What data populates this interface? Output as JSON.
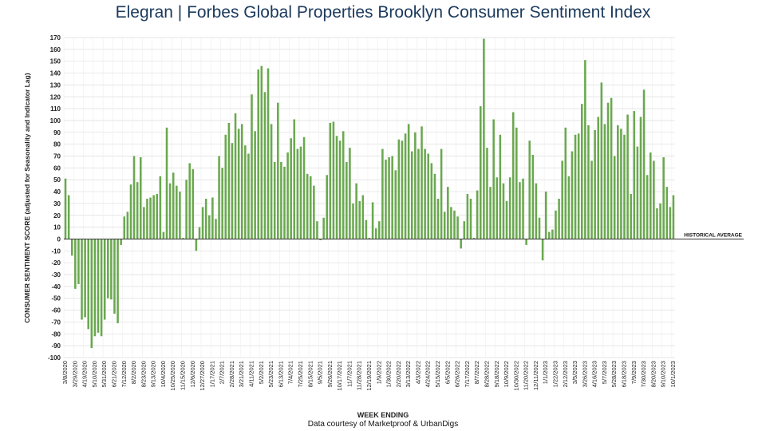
{
  "title": {
    "brand": "Elegran | Forbes Global Properties",
    "subtitle": "Brooklyn Consumer Sentiment Index"
  },
  "footer": {
    "credit": "Data courtesy of Marketproof & UrbanDigs"
  },
  "chart_data": {
    "type": "bar",
    "ylabel": "CONSUMER SENTIMENT SCORE (adjusted for Seasonality and Indicator Lag)",
    "xlabel": "WEEK ENDING",
    "ylim": [
      -100,
      170
    ],
    "yticks": [
      170,
      160,
      150,
      140,
      130,
      120,
      110,
      100,
      90,
      80,
      70,
      60,
      50,
      40,
      30,
      20,
      10,
      0,
      -10,
      -20,
      -30,
      -40,
      -50,
      -60,
      -70,
      -80,
      -90,
      -100
    ],
    "reference_line": {
      "value": 0,
      "label": "HISTORICAL AVERAGE"
    },
    "bar_color": "#6aa84f",
    "grid": true,
    "x_tick_labels": [
      "3/8/2020",
      "3/29/2020",
      "4/19/2020",
      "5/10/2020",
      "5/31/2020",
      "6/21/2020",
      "7/12/2020",
      "8/2/2020",
      "8/23/2020",
      "9/13/2020",
      "10/4/2020",
      "10/25/2020",
      "11/15/2020",
      "12/6/2020",
      "12/27/2020",
      "1/17/2021",
      "2/7/2021",
      "2/28/2021",
      "3/21/2021",
      "4/11/2021",
      "5/2/2021",
      "5/23/2021",
      "6/13/2021",
      "7/4/2021",
      "7/25/2021",
      "8/15/2021",
      "9/5/2021",
      "9/26/2021",
      "10/17/2021",
      "11/7/2021",
      "11/28/2021",
      "12/19/2021",
      "1/9/2022",
      "1/30/2022",
      "2/20/2022",
      "3/13/2022",
      "4/3/2022",
      "4/24/2022",
      "5/15/2022",
      "6/5/2022",
      "6/26/2022",
      "7/17/2022",
      "8/7/2022",
      "8/28/2022",
      "9/18/2022",
      "10/9/2022",
      "10/30/2022",
      "11/20/2022",
      "12/11/2022",
      "1/1/2023",
      "1/22/2023",
      "2/12/2023",
      "3/5/2023",
      "3/26/2023",
      "4/16/2023",
      "5/7/2023",
      "5/28/2023",
      "6/18/2023",
      "7/9/2023",
      "7/30/2023",
      "8/20/2023",
      "9/10/2023",
      "10/1/2023"
    ],
    "values": [
      51,
      37,
      -14,
      -42,
      -38,
      -68,
      -66,
      -76,
      -92,
      -82,
      -79,
      -82,
      -68,
      -50,
      -51,
      -63,
      -71,
      -5,
      19,
      23,
      46,
      70,
      48,
      69,
      27,
      34,
      35,
      37,
      38,
      53,
      6,
      94,
      47,
      56,
      45,
      40,
      1,
      50,
      64,
      59,
      -10,
      10,
      27,
      34,
      20,
      35,
      17,
      70,
      60,
      88,
      98,
      81,
      106,
      93,
      97,
      79,
      72,
      122,
      91,
      143,
      146,
      124,
      144,
      97,
      65,
      115,
      65,
      61,
      73,
      85,
      101,
      76,
      78,
      86,
      55,
      53,
      45,
      15,
      -1,
      18,
      54,
      98,
      99,
      87,
      83,
      91,
      65,
      77,
      30,
      47,
      32,
      37,
      16,
      1,
      31,
      9,
      15,
      76,
      67,
      69,
      70,
      58,
      84,
      83,
      89,
      97,
      74,
      90,
      76,
      95,
      76,
      72,
      64,
      55,
      34,
      76,
      23,
      44,
      27,
      24,
      19,
      -8,
      15,
      38,
      34,
      1,
      41,
      112,
      169,
      77,
      44,
      101,
      52,
      88,
      47,
      32,
      52,
      107,
      94,
      48,
      51,
      -5,
      83,
      71,
      47,
      18,
      -18,
      40,
      6,
      8,
      24,
      34,
      66,
      94,
      53,
      74,
      88,
      89,
      114,
      151,
      96,
      66,
      92,
      103,
      132,
      97,
      115,
      119,
      70,
      96,
      93,
      88,
      105,
      38,
      108,
      78,
      103,
      126,
      54,
      73,
      66,
      26,
      30,
      69,
      44,
      27,
      37
    ]
  }
}
